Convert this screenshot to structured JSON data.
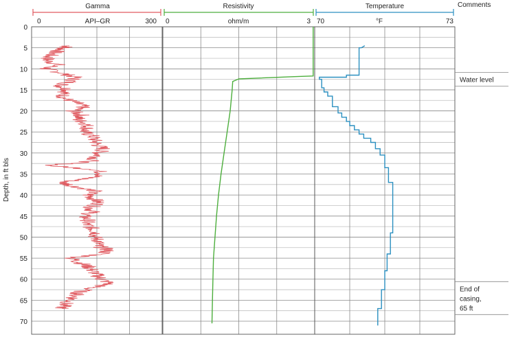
{
  "chart_data": {
    "type": "line",
    "ylabel": "Depth, in ft bls",
    "ylim": [
      0,
      72
    ],
    "yticks": [
      0,
      5,
      10,
      15,
      20,
      25,
      30,
      35,
      40,
      45,
      50,
      55,
      60,
      65,
      70
    ],
    "tracks": [
      {
        "name": "Gamma",
        "unit": "API–GR",
        "xmin_label": "0",
        "xmax_label": "300",
        "xlim": [
          0,
          300
        ],
        "color": "#e05a60",
        "series": {
          "depth": [
            4.5,
            5,
            6,
            7,
            8,
            9,
            10,
            11,
            12,
            13,
            14,
            15,
            16,
            17,
            18,
            19,
            20,
            21,
            22,
            23,
            24,
            25,
            26,
            27,
            28,
            29,
            30,
            31,
            32,
            33,
            34,
            35,
            36,
            37,
            38,
            39,
            40,
            41,
            42,
            43,
            44,
            45,
            46,
            47,
            48,
            49,
            50,
            51,
            52,
            53,
            54,
            55,
            56,
            57,
            58,
            59,
            60,
            61,
            62,
            63,
            64,
            65,
            66,
            67
          ],
          "value": [
            85,
            75,
            55,
            40,
            35,
            60,
            30,
            70,
            100,
            90,
            65,
            85,
            70,
            75,
            100,
            120,
            95,
            115,
            105,
            125,
            130,
            120,
            140,
            145,
            150,
            165,
            155,
            150,
            135,
            40,
            150,
            165,
            130,
            70,
            100,
            145,
            130,
            145,
            155,
            135,
            140,
            120,
            130,
            125,
            140,
            150,
            145,
            155,
            150,
            175,
            165,
            90,
            110,
            130,
            140,
            150,
            160,
            180,
            140,
            110,
            100,
            90,
            75,
            70
          ]
        }
      },
      {
        "name": "Resistivity",
        "unit": "ohm/m",
        "xmin_label": "0",
        "xmax_label": "3",
        "xlim": [
          0,
          3
        ],
        "color": "#4cae3c",
        "series": {
          "depth": [
            0,
            11.7,
            11.9,
            12.4,
            13,
            15,
            20,
            25,
            30,
            35,
            40,
            45,
            50,
            55,
            60,
            65,
            70.5
          ],
          "value": [
            2.97,
            2.97,
            2.5,
            1.5,
            1.38,
            1.37,
            1.33,
            1.27,
            1.21,
            1.15,
            1.1,
            1.06,
            1.03,
            1.0,
            0.99,
            0.98,
            0.97
          ]
        }
      },
      {
        "name": "Temperature",
        "unit": "°F",
        "xmin_label": "70",
        "xmax_label": "73",
        "xlim": [
          70,
          73
        ],
        "color": "#2a8fc0",
        "series": {
          "depth": [
            4.5,
            5,
            5,
            11.5,
            11.5,
            12,
            12,
            12.5,
            12.5,
            14.5,
            14.5,
            15.5,
            15.5,
            16.5,
            16.5,
            19,
            19,
            20.5,
            20.5,
            21.5,
            21.5,
            22.5,
            22.5,
            23.5,
            23.5,
            24.5,
            24.5,
            25.5,
            25.5,
            26.5,
            26.5,
            27.5,
            27.5,
            29,
            29,
            30.5,
            30.5,
            33.5,
            33.5,
            37,
            37,
            49,
            49,
            54,
            54,
            58,
            58,
            62.5,
            62.5,
            67,
            67,
            71
          ],
          "value": [
            71.07,
            71.0,
            70.95,
            70.95,
            70.68,
            70.68,
            70.1,
            70.1,
            70.15,
            70.15,
            70.2,
            70.2,
            70.28,
            70.28,
            70.38,
            70.38,
            70.5,
            70.5,
            70.58,
            70.58,
            70.68,
            70.68,
            70.75,
            70.75,
            70.85,
            70.85,
            70.95,
            70.95,
            71.05,
            71.05,
            71.2,
            71.2,
            71.3,
            71.3,
            71.4,
            71.4,
            71.5,
            71.5,
            71.58,
            71.58,
            71.67,
            71.67,
            71.62,
            71.62,
            71.55,
            71.55,
            71.5,
            71.5,
            71.43,
            71.43,
            71.35,
            71.35
          ]
        }
      }
    ],
    "comments_title": "Comments",
    "annotations": [
      {
        "depth": 12.5,
        "text": [
          "Water level"
        ]
      },
      {
        "depth": 64.5,
        "text": [
          "End of",
          "casing,",
          "65 ft"
        ]
      }
    ]
  }
}
